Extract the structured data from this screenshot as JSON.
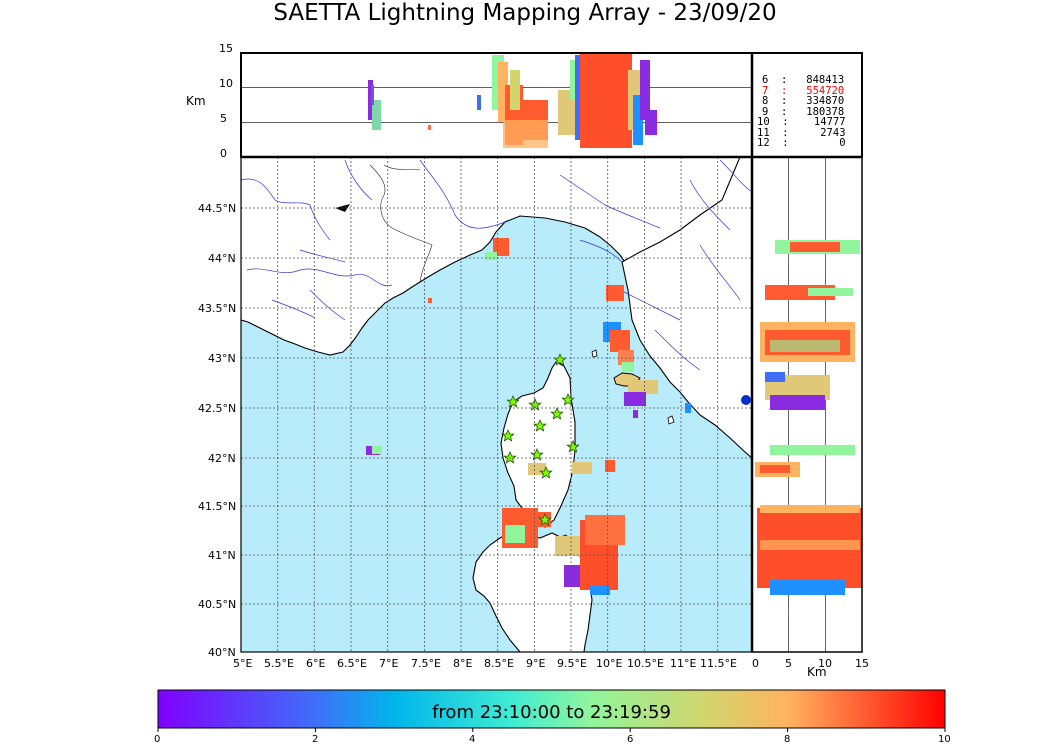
{
  "title": "SAETTA Lightning Mapping Array - 23/09/20",
  "height_panel": {
    "unit_label": "Km",
    "ticks": [
      "15",
      "10",
      "5",
      "0"
    ]
  },
  "side_panel": {
    "unit_label": "Km",
    "ticks": [
      "0",
      "5",
      "10",
      "15"
    ]
  },
  "map": {
    "lon_ticks": [
      "5°E",
      "5.5°E",
      "6°E",
      "6.5°E",
      "7°E",
      "7.5°E",
      "8°E",
      "8.5°E",
      "9°E",
      "9.5°E",
      "10°E",
      "10.5°E",
      "11°E",
      "11.5°E"
    ],
    "lat_ticks": [
      "44.5°N",
      "44°N",
      "43.5°N",
      "43°N",
      "42.5°N",
      "42°N",
      "41.5°N",
      "41°N",
      "40.5°N",
      "40°N"
    ],
    "sea_color": "#b8ecfa",
    "land_color": "#ffffff",
    "station_marker": "star",
    "station_color": "#7cfc00"
  },
  "stats": [
    {
      "level": "6",
      "count": "848413",
      "highlight": false
    },
    {
      "level": "7",
      "count": "554720",
      "highlight": true
    },
    {
      "level": "8",
      "count": "334870",
      "highlight": false
    },
    {
      "level": "9",
      "count": "180378",
      "highlight": false
    },
    {
      "level": "10",
      "count": "14777",
      "highlight": false
    },
    {
      "level": "11",
      "count": "2743",
      "highlight": false
    },
    {
      "level": "12",
      "count": "0",
      "highlight": false
    }
  ],
  "colorbar": {
    "label": "from 23:10:00 to 23:19:59",
    "ticks": [
      "0",
      "2",
      "4",
      "6",
      "8",
      "10"
    ],
    "range": [
      0,
      10
    ],
    "colormap": "rainbow"
  }
}
